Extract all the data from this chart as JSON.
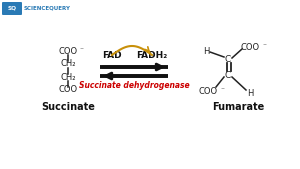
{
  "background_color": "#ffffff",
  "logo_text": "SCIENCEQUERY",
  "succinate_label": "Succinate",
  "fumarate_label": "Fumarate",
  "enzyme_label": "Succinate dehydrogenase",
  "fad_label": "FAD",
  "fadh2_label": "FADH₂",
  "arc_color": "#c8900a",
  "enzyme_color": "#cc0000",
  "structure_color": "#222222",
  "arrow_color": "#111111",
  "label_color": "#111111",
  "logo_box_color": "#2a7ab5",
  "logo_text_color": "#2a7ab5"
}
